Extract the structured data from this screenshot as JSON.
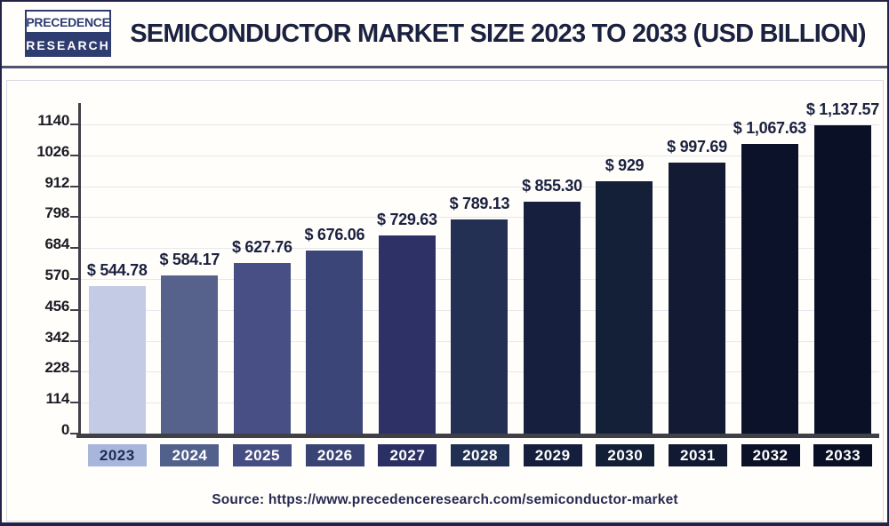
{
  "brand": {
    "line1": "PRECEDENCE",
    "line2": "RESEARCH"
  },
  "header": {
    "title": "SEMICONDUCTOR MARKET SIZE 2023 TO 2033 (USD BILLION)"
  },
  "source": {
    "text": "Source: https://www.precedenceresearch.com/semiconductor-market"
  },
  "chart_data": {
    "type": "bar",
    "title": "Semiconductor Market Size 2023 to 2033 (USD Billion)",
    "categories": [
      "2023",
      "2024",
      "2025",
      "2026",
      "2027",
      "2028",
      "2029",
      "2030",
      "2031",
      "2032",
      "2033"
    ],
    "values": [
      544.78,
      584.17,
      627.76,
      676.06,
      729.63,
      789.13,
      855.3,
      929,
      997.69,
      1067.63,
      1137.57
    ],
    "value_labels": [
      "$ 544.78",
      "$ 584.17",
      "$ 627.76",
      "$ 676.06",
      "$ 729.63",
      "$ 789.13",
      "$ 855.30",
      "$ 929",
      "$ 997.69",
      "$ 1,067.63",
      "$ 1,137.57"
    ],
    "bar_colors": [
      "#c3cbe5",
      "#56618c",
      "#474f85",
      "#3b4577",
      "#2d3165",
      "#233054",
      "#161f3d",
      "#142038",
      "#121b33",
      "#0c1229",
      "#0a1126"
    ],
    "category_box_colors": [
      "#a9b6db",
      "#52608c",
      "#454e83",
      "#394374",
      "#2b3064",
      "#213052",
      "#151e3c",
      "#131f37",
      "#111a32",
      "#0b1128",
      "#091025"
    ],
    "category_text_colors": [
      "#1e2a55",
      "#ffffff",
      "#ffffff",
      "#ffffff",
      "#ffffff",
      "#ffffff",
      "#ffffff",
      "#ffffff",
      "#ffffff",
      "#ffffff",
      "#ffffff"
    ],
    "yticks": [
      0,
      114,
      228,
      342,
      456,
      570,
      684,
      798,
      912,
      1026,
      1140
    ],
    "ylim": [
      0,
      1140
    ],
    "xlabel": "",
    "ylabel": "",
    "grid": "horizontal",
    "legend": "none"
  }
}
